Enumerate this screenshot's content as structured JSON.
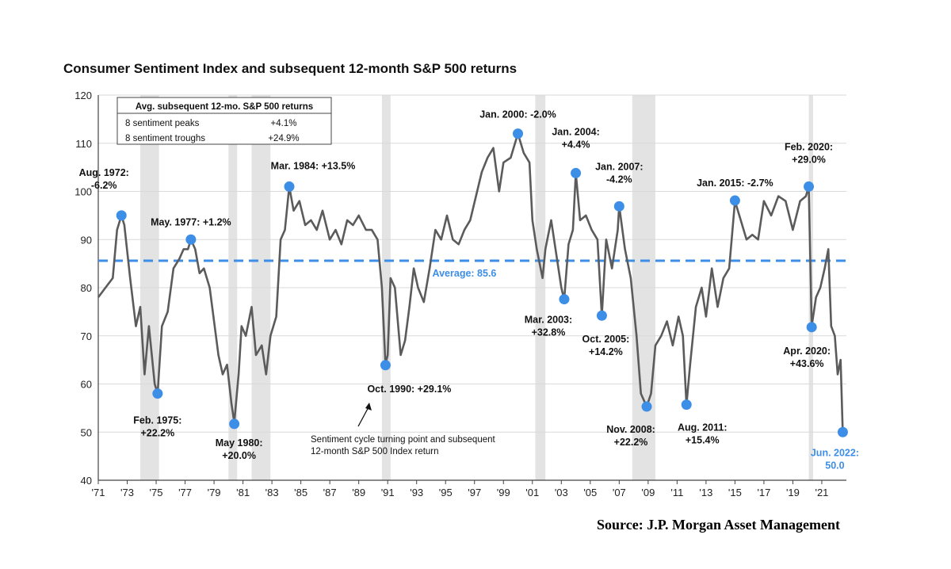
{
  "chart_data": {
    "type": "line",
    "title": "Consumer Sentiment Index and subsequent 12-month S&P 500 returns",
    "source": "Source:  J.P. Morgan Asset Management",
    "ylim": [
      40,
      120
    ],
    "yticks": [
      40,
      50,
      60,
      70,
      80,
      90,
      100,
      110,
      120
    ],
    "xlim": [
      1971,
      2022.7
    ],
    "xticks": [
      {
        "year": 1971,
        "label": "'71"
      },
      {
        "year": 1973,
        "label": "'73"
      },
      {
        "year": 1975,
        "label": "'75"
      },
      {
        "year": 1977,
        "label": "'77"
      },
      {
        "year": 1979,
        "label": "'79"
      },
      {
        "year": 1981,
        "label": "'81"
      },
      {
        "year": 1983,
        "label": "'83"
      },
      {
        "year": 1985,
        "label": "'85"
      },
      {
        "year": 1987,
        "label": "'87"
      },
      {
        "year": 1989,
        "label": "'89"
      },
      {
        "year": 1991,
        "label": "'91"
      },
      {
        "year": 1993,
        "label": "'93"
      },
      {
        "year": 1995,
        "label": "'95"
      },
      {
        "year": 1997,
        "label": "'97"
      },
      {
        "year": 1999,
        "label": "'99"
      },
      {
        "year": 2001,
        "label": "'01"
      },
      {
        "year": 2003,
        "label": "'03"
      },
      {
        "year": 2005,
        "label": "'05"
      },
      {
        "year": 2007,
        "label": "'07"
      },
      {
        "year": 2009,
        "label": "'09"
      },
      {
        "year": 2011,
        "label": "'11"
      },
      {
        "year": 2013,
        "label": "'13"
      },
      {
        "year": 2015,
        "label": "'15"
      },
      {
        "year": 2017,
        "label": "'17"
      },
      {
        "year": 2019,
        "label": "'19"
      },
      {
        "year": 2021,
        "label": "'21"
      }
    ],
    "grid": true,
    "colors": {
      "line": "#5b5b5b",
      "marker": "#3d8ee6",
      "average": "#3d8ee6",
      "recession": "#e3e3e3",
      "grid": "#d9d9d9"
    },
    "recessions": [
      [
        1973.9,
        1975.2
      ],
      [
        1980.0,
        1980.6
      ],
      [
        1981.6,
        1982.9
      ],
      [
        1990.6,
        1991.2
      ],
      [
        2001.2,
        2001.9
      ],
      [
        2007.9,
        2009.5
      ],
      [
        2020.1,
        2020.4
      ]
    ],
    "average": {
      "value": 85.6,
      "label": "Average: 85.6"
    },
    "series": [
      {
        "points": [
          [
            1971.0,
            78
          ],
          [
            1971.5,
            80
          ],
          [
            1972.0,
            82
          ],
          [
            1972.3,
            92
          ],
          [
            1972.6,
            95
          ],
          [
            1972.8,
            93
          ],
          [
            1973.2,
            82
          ],
          [
            1973.6,
            72
          ],
          [
            1973.9,
            76
          ],
          [
            1974.2,
            62
          ],
          [
            1974.5,
            72
          ],
          [
            1974.9,
            60
          ],
          [
            1975.1,
            58
          ],
          [
            1975.4,
            72
          ],
          [
            1975.8,
            75
          ],
          [
            1976.2,
            84
          ],
          [
            1976.6,
            86
          ],
          [
            1976.9,
            88
          ],
          [
            1977.2,
            88
          ],
          [
            1977.4,
            90
          ],
          [
            1977.7,
            88
          ],
          [
            1978.0,
            83
          ],
          [
            1978.3,
            84
          ],
          [
            1978.7,
            80
          ],
          [
            1979.0,
            73
          ],
          [
            1979.3,
            66
          ],
          [
            1979.6,
            62
          ],
          [
            1979.9,
            64
          ],
          [
            1980.2,
            56
          ],
          [
            1980.4,
            52
          ],
          [
            1980.7,
            62
          ],
          [
            1980.9,
            72
          ],
          [
            1981.2,
            70
          ],
          [
            1981.6,
            76
          ],
          [
            1981.9,
            66
          ],
          [
            1982.3,
            68
          ],
          [
            1982.6,
            62
          ],
          [
            1982.9,
            70
          ],
          [
            1983.3,
            74
          ],
          [
            1983.6,
            90
          ],
          [
            1983.9,
            92
          ],
          [
            1984.2,
            101
          ],
          [
            1984.5,
            96
          ],
          [
            1984.9,
            98
          ],
          [
            1985.3,
            93
          ],
          [
            1985.7,
            94
          ],
          [
            1986.1,
            92
          ],
          [
            1986.5,
            96
          ],
          [
            1987.0,
            90
          ],
          [
            1987.4,
            92
          ],
          [
            1987.8,
            89
          ],
          [
            1988.2,
            94
          ],
          [
            1988.6,
            93
          ],
          [
            1989.0,
            95
          ],
          [
            1989.5,
            92
          ],
          [
            1989.9,
            92
          ],
          [
            1990.3,
            90
          ],
          [
            1990.6,
            80
          ],
          [
            1990.85,
            64
          ],
          [
            1991.0,
            66
          ],
          [
            1991.2,
            82
          ],
          [
            1991.5,
            80
          ],
          [
            1991.9,
            66
          ],
          [
            1992.2,
            69
          ],
          [
            1992.5,
            76
          ],
          [
            1992.8,
            84
          ],
          [
            1993.1,
            80
          ],
          [
            1993.5,
            77
          ],
          [
            1993.9,
            84
          ],
          [
            1994.3,
            92
          ],
          [
            1994.7,
            90
          ],
          [
            1995.1,
            95
          ],
          [
            1995.5,
            90
          ],
          [
            1995.9,
            89
          ],
          [
            1996.3,
            92
          ],
          [
            1996.7,
            94
          ],
          [
            1997.1,
            99
          ],
          [
            1997.5,
            104
          ],
          [
            1997.9,
            107
          ],
          [
            1998.3,
            109
          ],
          [
            1998.7,
            100
          ],
          [
            1999.0,
            106
          ],
          [
            1999.5,
            107
          ],
          [
            2000.0,
            112
          ],
          [
            2000.4,
            108
          ],
          [
            2000.8,
            106
          ],
          [
            2001.0,
            94
          ],
          [
            2001.3,
            88
          ],
          [
            2001.7,
            82
          ],
          [
            2001.9,
            88
          ],
          [
            2002.3,
            94
          ],
          [
            2002.7,
            86
          ],
          [
            2003.0,
            80
          ],
          [
            2003.2,
            77.5
          ],
          [
            2003.5,
            89
          ],
          [
            2003.8,
            92
          ],
          [
            2004.0,
            103.8
          ],
          [
            2004.3,
            94
          ],
          [
            2004.7,
            95
          ],
          [
            2005.1,
            92
          ],
          [
            2005.5,
            90
          ],
          [
            2005.8,
            74.2
          ],
          [
            2006.1,
            90
          ],
          [
            2006.5,
            84
          ],
          [
            2006.9,
            92
          ],
          [
            2007.0,
            97
          ],
          [
            2007.4,
            88
          ],
          [
            2007.8,
            82
          ],
          [
            2008.2,
            70
          ],
          [
            2008.5,
            58
          ],
          [
            2008.9,
            55.3
          ],
          [
            2009.2,
            58
          ],
          [
            2009.5,
            68
          ],
          [
            2009.9,
            70
          ],
          [
            2010.3,
            73
          ],
          [
            2010.7,
            68
          ],
          [
            2011.1,
            74
          ],
          [
            2011.4,
            70
          ],
          [
            2011.65,
            55.7
          ],
          [
            2011.9,
            64
          ],
          [
            2012.3,
            76
          ],
          [
            2012.7,
            80
          ],
          [
            2013.0,
            74
          ],
          [
            2013.4,
            84
          ],
          [
            2013.8,
            76
          ],
          [
            2014.2,
            82
          ],
          [
            2014.6,
            84
          ],
          [
            2015.0,
            98
          ],
          [
            2015.4,
            94
          ],
          [
            2015.8,
            90
          ],
          [
            2016.2,
            91
          ],
          [
            2016.6,
            90
          ],
          [
            2017.0,
            98
          ],
          [
            2017.5,
            95
          ],
          [
            2018.0,
            99
          ],
          [
            2018.5,
            98
          ],
          [
            2019.0,
            92
          ],
          [
            2019.5,
            98
          ],
          [
            2019.9,
            99
          ],
          [
            2020.1,
            101
          ],
          [
            2020.3,
            72
          ],
          [
            2020.6,
            78
          ],
          [
            2020.9,
            80
          ],
          [
            2021.2,
            84
          ],
          [
            2021.45,
            88
          ],
          [
            2021.65,
            72
          ],
          [
            2021.9,
            70
          ],
          [
            2022.1,
            62
          ],
          [
            2022.3,
            65
          ],
          [
            2022.45,
            50
          ]
        ]
      }
    ],
    "markers": [
      {
        "x": 1972.6,
        "y": 95,
        "label": [
          "Aug. 1972:",
          "-6.2%"
        ]
      },
      {
        "x": 1975.1,
        "y": 58,
        "label": [
          "Feb. 1975:",
          "+22.2%"
        ]
      },
      {
        "x": 1977.4,
        "y": 90,
        "label": [
          "May. 1977: +1.2%"
        ]
      },
      {
        "x": 1980.4,
        "y": 51.7,
        "label": [
          "May 1980:",
          "+20.0%"
        ]
      },
      {
        "x": 1984.2,
        "y": 101,
        "label": [
          "Mar. 1984: +13.5%"
        ]
      },
      {
        "x": 1990.85,
        "y": 63.9,
        "label": [
          "Oct. 1990: +29.1%"
        ]
      },
      {
        "x": 2000.0,
        "y": 112,
        "label": [
          "Jan. 2000: -2.0%"
        ]
      },
      {
        "x": 2003.2,
        "y": 77.6,
        "label": [
          "Mar. 2003:",
          "+32.8%"
        ]
      },
      {
        "x": 2004.0,
        "y": 103.8,
        "label": [
          "Jan. 2004:",
          "+4.4%"
        ]
      },
      {
        "x": 2005.8,
        "y": 74.2,
        "label": [
          "Oct. 2005:",
          "+14.2%"
        ]
      },
      {
        "x": 2007.0,
        "y": 96.9,
        "label": [
          "Jan. 2007:",
          "-4.2%"
        ]
      },
      {
        "x": 2008.9,
        "y": 55.3,
        "label": [
          "Nov. 2008:",
          "+22.2%"
        ]
      },
      {
        "x": 2011.65,
        "y": 55.7,
        "label": [
          "Aug. 2011:",
          "+15.4%"
        ]
      },
      {
        "x": 2015.0,
        "y": 98.1,
        "label": [
          "Jan. 2015: -2.7%"
        ]
      },
      {
        "x": 2020.1,
        "y": 101,
        "label": [
          "Feb. 2020:",
          "+29.0%"
        ]
      },
      {
        "x": 2020.3,
        "y": 71.8,
        "label": [
          "Apr. 2020:",
          "+43.6%"
        ]
      },
      {
        "x": 2022.45,
        "y": 50.0,
        "label": [
          "Jun. 2022:",
          "50.0"
        ]
      }
    ],
    "inset_table": {
      "header": "Avg. subsequent 12-mo. S&P 500 returns",
      "rows": [
        {
          "label": "8 sentiment peaks",
          "value": "+4.1%"
        },
        {
          "label": "8 sentiment troughs",
          "value": "+24.9%"
        }
      ]
    },
    "annotation_note": [
      "Sentiment cycle turning point and subsequent",
      "12-month S&P 500 Index return"
    ]
  }
}
